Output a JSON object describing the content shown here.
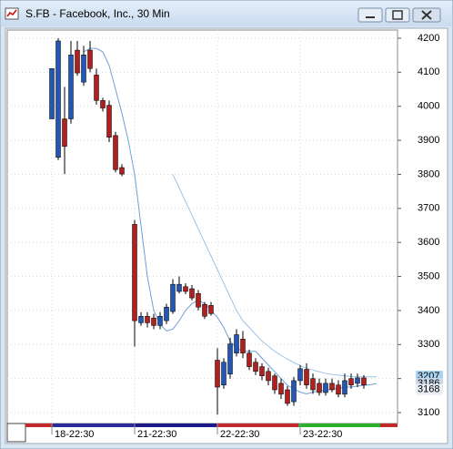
{
  "chart_data": {
    "type": "candlestick",
    "title": "S.FB - Facebook, Inc., 30 Min",
    "categories": [
      "18-22:30",
      null,
      null,
      null,
      null,
      null,
      null,
      null,
      null,
      null,
      null,
      null,
      null,
      "21-22:30",
      null,
      null,
      null,
      null,
      null,
      null,
      null,
      null,
      null,
      null,
      null,
      null,
      "22-22:30",
      null,
      null,
      null,
      null,
      null,
      null,
      null,
      null,
      null,
      null,
      null,
      null,
      "23-22:30",
      null,
      null,
      null,
      null,
      null,
      null,
      null,
      null,
      null,
      null,
      null,
      null
    ],
    "open": [
      3963,
      3850,
      3963,
      3963,
      4165,
      4071,
      4165,
      4092,
      4017,
      4003,
      3914,
      3820,
      null,
      3653,
      3364,
      3383,
      3378,
      3356,
      3370,
      3397,
      3456,
      3470,
      3464,
      3450,
      3418,
      3415,
      3254,
      3181,
      3213,
      3275,
      3316,
      3275,
      3248,
      3235,
      3221,
      3208,
      3186,
      3167,
      3132,
      3194,
      3227,
      3200,
      3186,
      3159,
      3186,
      3181,
      3154,
      3200,
      3186,
      3202,
      null,
      null
    ],
    "high": [
      4111,
      4200,
      4057,
      4192,
      4192,
      4178,
      4192,
      4111,
      4025,
      4017,
      3925,
      3830,
      null,
      3666,
      3395,
      3395,
      3390,
      3395,
      3420,
      3492,
      3500,
      3480,
      3475,
      3460,
      3425,
      3425,
      3289,
      3260,
      3320,
      3345,
      3340,
      3285,
      3260,
      3245,
      3232,
      3215,
      3200,
      3178,
      3205,
      3240,
      3245,
      3215,
      3200,
      3200,
      3200,
      3195,
      3215,
      3215,
      3215,
      3210,
      null,
      null
    ],
    "low": [
      3963,
      3842,
      3801,
      3949,
      4090,
      4060,
      4100,
      4005,
      3985,
      3895,
      3806,
      3795,
      null,
      3294,
      3355,
      3350,
      3345,
      3345,
      3360,
      3390,
      3450,
      3448,
      3430,
      3400,
      3375,
      3385,
      3094,
      3170,
      3200,
      3265,
      3260,
      3225,
      3210,
      3195,
      3180,
      3155,
      3140,
      3120,
      3120,
      3180,
      3170,
      3155,
      3150,
      3150,
      3160,
      3145,
      3145,
      3170,
      3175,
      3170,
      null,
      null
    ],
    "close": [
      4111,
      4192,
      3882,
      4151,
      4098,
      4151,
      4111,
      4017,
      3995,
      3909,
      3814,
      3801,
      null,
      3370,
      3383,
      3364,
      3356,
      3383,
      3410,
      3477,
      3477,
      3456,
      3437,
      3410,
      3383,
      3391,
      3175,
      3248,
      3302,
      3329,
      3275,
      3235,
      3221,
      3208,
      3194,
      3167,
      3154,
      3127,
      3194,
      3229,
      3181,
      3167,
      3159,
      3186,
      3167,
      3154,
      3194,
      3181,
      3202,
      3181,
      null,
      null
    ],
    "up_color": "#2456b4",
    "down_color": "#b02020",
    "overlays": [
      {
        "color": "#6e9fd8",
        "values": [
          null,
          null,
          null,
          null,
          null,
          4160,
          4170,
          4170,
          4160,
          4120,
          4050,
          3980,
          3900,
          3800,
          3650,
          3500,
          3400,
          3360,
          3340,
          3345,
          3370,
          3400,
          3420,
          3430,
          3420,
          3400,
          3380,
          3350,
          3310,
          3290,
          3280,
          3280,
          3280,
          3260,
          3240,
          3220,
          3200,
          3180,
          3170,
          3160,
          3155,
          3160,
          3165,
          3165,
          3170,
          3170,
          3175,
          3175,
          3178,
          3180,
          3182,
          3185
        ]
      },
      {
        "color": "#9cc3e8",
        "values": [
          null,
          null,
          null,
          null,
          null,
          null,
          null,
          null,
          null,
          null,
          null,
          null,
          null,
          null,
          null,
          null,
          null,
          null,
          null,
          3800,
          3760,
          3720,
          3680,
          3640,
          3600,
          3560,
          3520,
          3480,
          3440,
          3400,
          3370,
          3350,
          3330,
          3310,
          3295,
          3280,
          3268,
          3257,
          3247,
          3238,
          3230,
          3225,
          3220,
          3215,
          3212,
          3210,
          3208,
          3206,
          3205,
          3205,
          3205,
          3205
        ]
      }
    ],
    "ylim": [
      3068,
      4224
    ],
    "yticks": [
      3100,
      3200,
      3300,
      3400,
      3500,
      3600,
      3700,
      3800,
      3900,
      4000,
      4100,
      4200
    ],
    "price_labels": [
      {
        "value": 3207,
        "color": "#a8d4f0"
      },
      {
        "value": 3186,
        "color": "#c8d8e8"
      },
      {
        "value": 3168,
        "color": "#e8eef4"
      }
    ],
    "grid": true
  }
}
